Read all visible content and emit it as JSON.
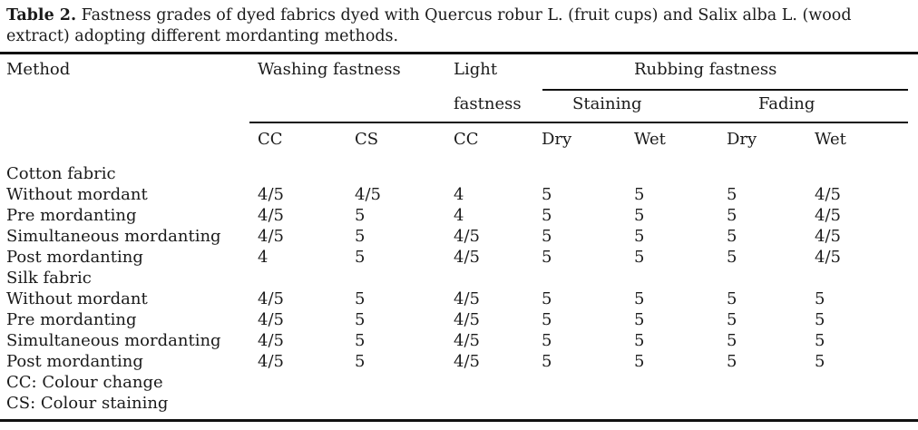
{
  "caption": {
    "label": "Table 2.",
    "text": "Fastness grades of dyed fabrics dyed with Quercus robur L. (fruit cups) and Salix alba L. (wood extract) adopting different mordanting methods."
  },
  "header": {
    "method": "Method",
    "washing": "Washing fastness",
    "light_line1": "Light",
    "light_line2": "fastness",
    "rubbing": "Rubbing fastness",
    "staining": "Staining",
    "fading": "Fading",
    "sub": [
      "CC",
      "CS",
      "CC",
      "Dry",
      "Wet",
      "Dry",
      "Wet"
    ]
  },
  "rows": [
    {
      "type": "group",
      "label": "Cotton fabric"
    },
    {
      "type": "data",
      "method": "Without mordant",
      "values": [
        "4/5",
        "4/5",
        "4",
        "5",
        "5",
        "5",
        "4/5"
      ]
    },
    {
      "type": "data",
      "method": "Pre mordanting",
      "values": [
        "4/5",
        "5",
        "4",
        "5",
        "5",
        "5",
        "4/5"
      ]
    },
    {
      "type": "data",
      "method": "Simultaneous mordanting",
      "values": [
        "4/5",
        "5",
        "4/5",
        "5",
        "5",
        "5",
        "4/5"
      ]
    },
    {
      "type": "data",
      "method": "Post mordanting",
      "values": [
        "4",
        "5",
        "4/5",
        "5",
        "5",
        "5",
        "4/5"
      ]
    },
    {
      "type": "group",
      "label": "Silk fabric"
    },
    {
      "type": "data",
      "method": "Without mordant",
      "values": [
        "4/5",
        "5",
        "4/5",
        "5",
        "5",
        "5",
        "5"
      ]
    },
    {
      "type": "data",
      "method": "Pre mordanting",
      "values": [
        "4/5",
        "5",
        "4/5",
        "5",
        "5",
        "5",
        "5"
      ]
    },
    {
      "type": "data",
      "method": "Simultaneous mordanting",
      "values": [
        "4/5",
        "5",
        "4/5",
        "5",
        "5",
        "5",
        "5"
      ]
    },
    {
      "type": "data",
      "method": "Post mordanting",
      "values": [
        "4/5",
        "5",
        "4/5",
        "5",
        "5",
        "5",
        "5"
      ]
    }
  ],
  "footnotes": [
    "CC: Colour change",
    "CS: Colour staining"
  ]
}
